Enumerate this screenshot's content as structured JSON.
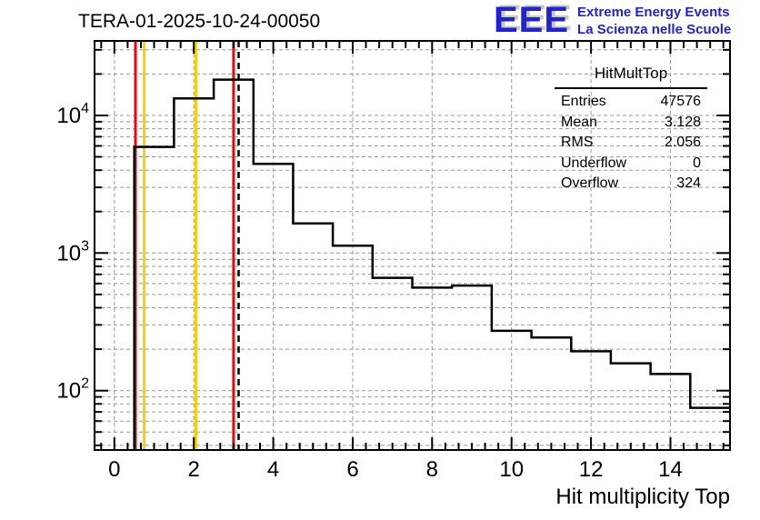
{
  "header": {
    "title": "TERA-01-2025-10-24-00050"
  },
  "logo": {
    "acronym": "EEE",
    "line1": "Extreme Energy Events",
    "line2": "La Scienza nelle Scuole",
    "color": "#2323cc",
    "shadow_color": "#c9c9c9"
  },
  "stats": {
    "title": "HitMultTop",
    "rows": [
      {
        "label": "Entries",
        "value": "47576"
      },
      {
        "label": "Mean",
        "value": "3.128"
      },
      {
        "label": "RMS",
        "value": "2.056"
      },
      {
        "label": "Underflow",
        "value": "0"
      },
      {
        "label": "Overflow",
        "value": "324"
      }
    ]
  },
  "axes": {
    "x_title": "Hit multiplicity Top",
    "x_tick_labels": [
      "0",
      "2",
      "4",
      "6",
      "8",
      "10",
      "12",
      "14"
    ],
    "y_tick_labels": [
      {
        "base": "10",
        "exp": "2",
        "value": 100
      },
      {
        "base": "10",
        "exp": "3",
        "value": 1000
      },
      {
        "base": "10",
        "exp": "4",
        "value": 10000
      }
    ]
  },
  "chart_data": {
    "type": "bar",
    "subtype": "step-histogram",
    "title": "TERA-01-2025-10-24-00050",
    "xlabel": "Hit multiplicity Top",
    "ylabel": "",
    "x_range": [
      -0.5,
      15.5
    ],
    "y_range": [
      37,
      34800
    ],
    "y_scale": "log",
    "grid": {
      "on": true,
      "color": "#999999",
      "dash": "4 3"
    },
    "line_color": "#000000",
    "bin_width": 1,
    "bin_centers": [
      1,
      2,
      3,
      4,
      5,
      6,
      7,
      8,
      9,
      10,
      11,
      12,
      13,
      14,
      15
    ],
    "counts": [
      5900,
      13300,
      18200,
      4450,
      1640,
      1130,
      660,
      560,
      580,
      272,
      243,
      193,
      158,
      132,
      75
    ],
    "x_major_ticks": [
      0,
      2,
      4,
      6,
      8,
      10,
      12,
      14
    ],
    "x_minor_step": 0.3333333,
    "marker_lines": [
      {
        "x": 0.53,
        "color": "#ff0000",
        "style": "solid",
        "name": "red-marker-line-1"
      },
      {
        "x": 0.75,
        "color": "#ffcc00",
        "style": "solid",
        "name": "yellow-marker-line-1"
      },
      {
        "x": 2.05,
        "color": "#ffcc00",
        "style": "solid",
        "name": "yellow-marker-line-2"
      },
      {
        "x": 3.0,
        "color": "#ff0000",
        "style": "solid",
        "name": "red-marker-line-2"
      },
      {
        "x": 3.128,
        "color": "#000000",
        "style": "dashed",
        "name": "mean-dashed-line"
      }
    ]
  }
}
